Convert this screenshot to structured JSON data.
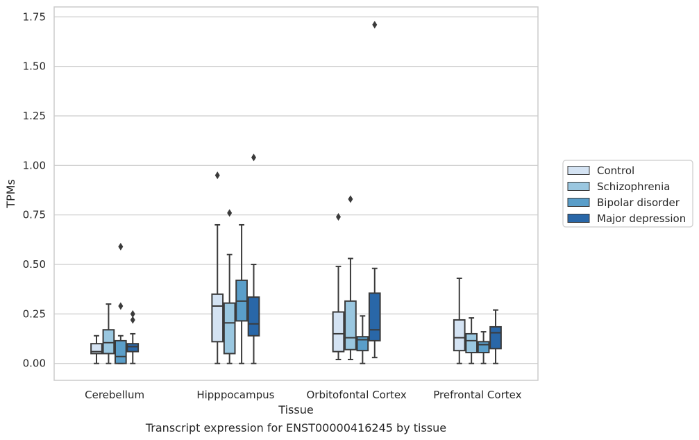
{
  "chart_data": {
    "type": "box",
    "xlabel": "Tissue",
    "ylabel": "TPMs",
    "caption": "Transcript expression for ENST00000416245 by tissue",
    "ylim": [
      -0.085,
      1.8
    ],
    "yticks": [
      0.0,
      0.25,
      0.5,
      0.75,
      1.0,
      1.25,
      1.5,
      1.75
    ],
    "ytick_labels": [
      "0.00",
      "0.25",
      "0.50",
      "0.75",
      "1.00",
      "1.25",
      "1.50",
      "1.75"
    ],
    "grid": "horizontal",
    "legend_position": "right",
    "categories": [
      "Cerebellum",
      "Hipppocampus",
      "Orbitofontal Cortex",
      "Prefrontal Cortex"
    ],
    "series": [
      {
        "name": "Control",
        "color": "#d4e3f3",
        "boxes": [
          {
            "whislo": 0.0,
            "q1": 0.05,
            "med": 0.06,
            "q3": 0.1,
            "whishi": 0.14,
            "fliers": []
          },
          {
            "whislo": 0.0,
            "q1": 0.11,
            "med": 0.29,
            "q3": 0.35,
            "whishi": 0.7,
            "fliers": [
              0.95
            ]
          },
          {
            "whislo": 0.02,
            "q1": 0.06,
            "med": 0.15,
            "q3": 0.26,
            "whishi": 0.49,
            "fliers": [
              0.74
            ]
          },
          {
            "whislo": 0.0,
            "q1": 0.065,
            "med": 0.13,
            "q3": 0.22,
            "whishi": 0.43,
            "fliers": []
          }
        ]
      },
      {
        "name": "Schizophrenia",
        "color": "#9ac7e0",
        "boxes": [
          {
            "whislo": 0.0,
            "q1": 0.05,
            "med": 0.105,
            "q3": 0.17,
            "whishi": 0.3,
            "fliers": []
          },
          {
            "whislo": 0.0,
            "q1": 0.05,
            "med": 0.205,
            "q3": 0.305,
            "whishi": 0.55,
            "fliers": [
              0.76
            ]
          },
          {
            "whislo": 0.02,
            "q1": 0.07,
            "med": 0.13,
            "q3": 0.315,
            "whishi": 0.53,
            "fliers": [
              0.83
            ]
          },
          {
            "whislo": 0.0,
            "q1": 0.055,
            "med": 0.115,
            "q3": 0.15,
            "whishi": 0.23,
            "fliers": []
          }
        ]
      },
      {
        "name": "Bipolar disorder",
        "color": "#5a9ec9",
        "boxes": [
          {
            "whislo": 0.0,
            "q1": 0.0,
            "med": 0.035,
            "q3": 0.115,
            "whishi": 0.14,
            "fliers": [
              0.29,
              0.59
            ]
          },
          {
            "whislo": 0.0,
            "q1": 0.215,
            "med": 0.315,
            "q3": 0.42,
            "whishi": 0.7,
            "fliers": []
          },
          {
            "whislo": 0.0,
            "q1": 0.065,
            "med": 0.12,
            "q3": 0.135,
            "whishi": 0.24,
            "fliers": []
          },
          {
            "whislo": 0.0,
            "q1": 0.055,
            "med": 0.095,
            "q3": 0.11,
            "whishi": 0.16,
            "fliers": []
          }
        ]
      },
      {
        "name": "Major depression",
        "color": "#2967a8",
        "boxes": [
          {
            "whislo": 0.0,
            "q1": 0.06,
            "med": 0.085,
            "q3": 0.1,
            "whishi": 0.15,
            "fliers": [
              0.22,
              0.25
            ]
          },
          {
            "whislo": 0.0,
            "q1": 0.14,
            "med": 0.2,
            "q3": 0.335,
            "whishi": 0.5,
            "fliers": [
              1.04
            ]
          },
          {
            "whislo": 0.03,
            "q1": 0.115,
            "med": 0.17,
            "q3": 0.355,
            "whishi": 0.48,
            "fliers": [
              1.71
            ]
          },
          {
            "whislo": 0.0,
            "q1": 0.075,
            "med": 0.155,
            "q3": 0.185,
            "whishi": 0.27,
            "fliers": []
          }
        ]
      }
    ]
  }
}
